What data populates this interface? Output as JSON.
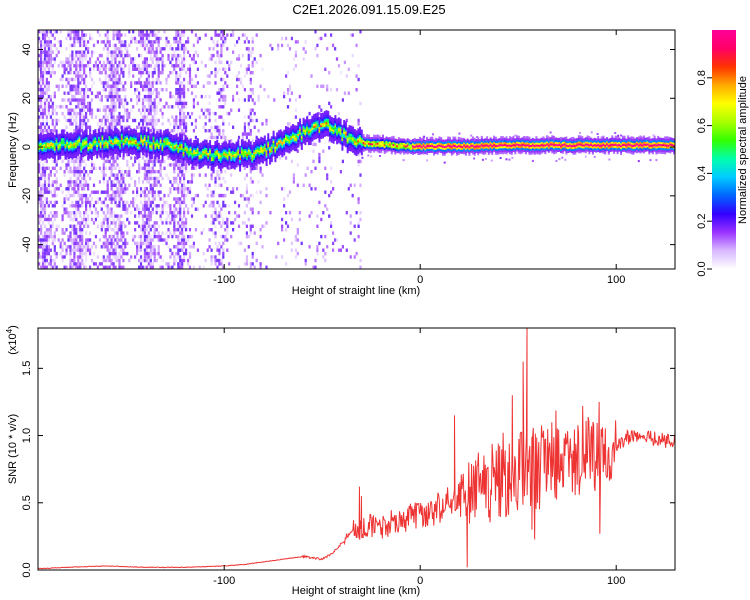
{
  "figure_title": "C2E1.2026.091.15.09.E25",
  "chart_data": [
    {
      "type": "heatmap",
      "title": "C2E1.2026.091.15.09.E25",
      "xlabel": "Height of straight line (km)",
      "ylabel": "Frequency (Hz)",
      "xlim": [
        -195,
        130
      ],
      "ylim": [
        -50,
        48
      ],
      "xticks": [
        -100,
        0,
        100
      ],
      "xtick_labels": [
        "-100",
        "0",
        "100"
      ],
      "yticks": [
        -40,
        -20,
        0,
        20,
        40
      ],
      "ytick_labels": [
        "-40",
        "-20",
        "0",
        "20",
        "40"
      ],
      "ridge": {
        "description": "dominant frequency track (Hz) vs height (km)",
        "x": [
          -195,
          -170,
          -150,
          -130,
          -115,
          -100,
          -85,
          -75,
          -65,
          -55,
          -50,
          -45,
          -40,
          -35,
          -30,
          -20,
          -10,
          0,
          20,
          40,
          60,
          80,
          100,
          130
        ],
        "y": [
          0,
          1,
          2,
          1,
          -3,
          -4,
          -3,
          0,
          4,
          7,
          9,
          8,
          5,
          3,
          1,
          1,
          0,
          0,
          0,
          0.5,
          0.5,
          0.5,
          0.5,
          0.5
        ]
      },
      "colorbar": {
        "label": "Normalized spectral amplitude",
        "range": [
          0,
          1
        ],
        "ticks": [
          0.0,
          0.2,
          0.4,
          0.6,
          0.8
        ],
        "tick_labels": [
          "0.0",
          "0.2",
          "0.4",
          "0.6",
          "0.8"
        ],
        "colors": [
          "#ffffff",
          "#d9b8ff",
          "#9933ff",
          "#3300ff",
          "#0066ff",
          "#00ccff",
          "#00ffaa",
          "#33ff00",
          "#aaff00",
          "#ffff00",
          "#ffaa00",
          "#ff3300",
          "#ff0066",
          "#ff0099"
        ]
      }
    },
    {
      "type": "line",
      "xlabel": "Height of straight line (km)",
      "ylabel": "SNR (10 * v/v)",
      "scale_label": "(x10",
      "scale_exponent": "4",
      "xlim": [
        -195,
        130
      ],
      "ylim": [
        0.0,
        1.8
      ],
      "xticks": [
        -100,
        0,
        100
      ],
      "xtick_labels": [
        "-100",
        "0",
        "100"
      ],
      "yticks": [
        0.0,
        0.5,
        1.0,
        1.5
      ],
      "ytick_labels": [
        "0.0",
        "0.5",
        "1.0",
        "1.5"
      ],
      "series": [
        {
          "name": "SNR",
          "color": "#ee3333",
          "x": [
            -195,
            -180,
            -160,
            -140,
            -120,
            -100,
            -90,
            -80,
            -70,
            -60,
            -50,
            -45,
            -40,
            -35,
            -30,
            -25,
            -20,
            -15,
            -10,
            -5,
            0,
            5,
            10,
            15,
            20,
            25,
            30,
            35,
            40,
            45,
            50,
            55,
            60,
            65,
            70,
            75,
            80,
            85,
            90,
            95,
            100,
            105,
            110,
            115,
            120,
            125,
            130
          ],
          "values": [
            0.01,
            0.02,
            0.03,
            0.02,
            0.02,
            0.03,
            0.04,
            0.06,
            0.08,
            0.1,
            0.08,
            0.12,
            0.2,
            0.28,
            0.3,
            0.32,
            0.3,
            0.34,
            0.35,
            0.38,
            0.4,
            0.42,
            0.45,
            0.5,
            0.52,
            0.55,
            0.6,
            0.62,
            0.65,
            0.66,
            0.68,
            0.7,
            0.72,
            0.74,
            0.76,
            0.78,
            0.8,
            0.82,
            0.84,
            0.85,
            0.9,
            0.98,
            1.0,
            0.98,
            0.97,
            0.96,
            0.95
          ],
          "peaks": [
            {
              "x": 54.5,
              "y": 1.8
            },
            {
              "x": 52.5,
              "y": 1.55
            },
            {
              "x": 47,
              "y": 1.3
            },
            {
              "x": 17.5,
              "y": 1.15
            },
            {
              "x": 57,
              "y": 0.3
            },
            {
              "x": 24,
              "y": 0.02
            },
            {
              "x": -31,
              "y": 0.62
            },
            {
              "x": -30,
              "y": 0.55
            }
          ]
        }
      ]
    }
  ]
}
